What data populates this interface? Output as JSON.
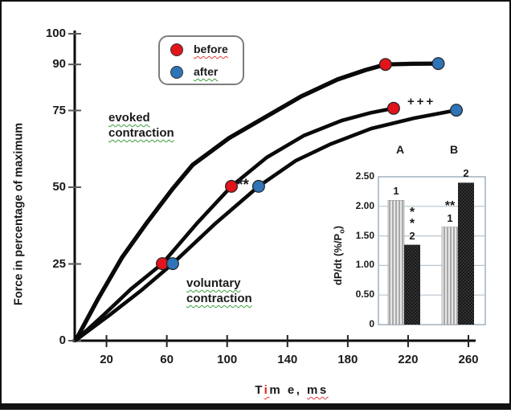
{
  "legend": {
    "items": [
      {
        "label": "before",
        "color": "#e1141c"
      },
      {
        "label": "after",
        "color": "#2e74b6"
      }
    ]
  },
  "annotations": {
    "evoked": [
      "evoked",
      "contraction"
    ],
    "voluntary": [
      "voluntary",
      "contraction"
    ],
    "double_star": "**",
    "triple_plus": "+++"
  },
  "chart_data": [
    {
      "type": "line",
      "xlabel": "Time, ms",
      "xlabel_parts": {
        "t": "T",
        "i": "i",
        "rest": "m e,",
        "unit": "ms"
      },
      "ylabel": "Force in percentage of maximum",
      "xlim": [
        0,
        275
      ],
      "ylim": [
        0,
        100
      ],
      "x_ticks": [
        20,
        60,
        100,
        140,
        180,
        220,
        260
      ],
      "y_ticks": [
        0,
        25,
        50,
        75,
        90,
        100
      ],
      "grid": false,
      "legend_position": "top-center",
      "line_color": "#0a0a0a",
      "series": [
        {
          "name": "evoked contraction - before",
          "marker_color": "#e1141c",
          "x": [
            0,
            14.4,
            30.4,
            46.9,
            63.9,
            77.2,
            101.2,
            125.2,
            149.2,
            173.2,
            191.8,
            205
          ],
          "y": [
            0.5,
            13.6,
            27.2,
            38.5,
            49.5,
            57.3,
            66,
            72.8,
            79.6,
            85.1,
            88.2,
            90
          ],
          "markers": [
            [
              205,
              90
            ]
          ]
        },
        {
          "name": "evoked contraction - after",
          "marker_color": "#2e74b6",
          "x": [
            0,
            14.4,
            30.4,
            46.9,
            63.9,
            77.2,
            101.2,
            125.2,
            149.2,
            173.2,
            191.8,
            205,
            222,
            240
          ],
          "y": [
            0.5,
            13.6,
            27.2,
            38.5,
            49.5,
            57.3,
            66,
            72.8,
            79.6,
            85.1,
            88.2,
            90,
            90.2,
            90.3
          ],
          "markers": [
            [
              240,
              90.3
            ]
          ]
        },
        {
          "name": "voluntary contraction - before",
          "marker_color": "#e1141c",
          "x": [
            0,
            18.6,
            36.2,
            57,
            79.9,
            102.8,
            126.3,
            150.8,
            175.8,
            195.5,
            210.4
          ],
          "y": [
            0.3,
            8.6,
            16.8,
            25.1,
            38.2,
            50.3,
            59.7,
            66.8,
            71.7,
            74.3,
            75.7
          ],
          "markers": [
            [
              57,
              25.1
            ],
            [
              102.8,
              50.3
            ],
            [
              210.4,
              75.7
            ]
          ]
        },
        {
          "name": "voluntary contraction - after",
          "marker_color": "#2e74b6",
          "x": [
            0,
            21.3,
            42.6,
            63.9,
            92.2,
            120.9,
            145.4,
            168.9,
            195.5,
            223.8,
            252
          ],
          "y": [
            0.3,
            8.1,
            16.2,
            25.1,
            38.2,
            50.3,
            58.6,
            64.1,
            69.1,
            72.5,
            75.1
          ],
          "markers": [
            [
              63.9,
              25.1
            ],
            [
              120.9,
              50.3
            ],
            [
              252,
              75.1
            ]
          ]
        }
      ],
      "annotations": [
        {
          "text": "**",
          "x": 107,
          "y": 52
        },
        {
          "text": "+++",
          "x": 221,
          "y": 79
        }
      ]
    },
    {
      "type": "bar",
      "ylabel": "dP/dt (%/Po)",
      "ylabel_parts": {
        "prefix": "dP/dt (%/P",
        "sub": "o",
        "suffix": ")"
      },
      "ylim": [
        0,
        2.5
      ],
      "y_ticks": [
        "2.50",
        "2.00",
        "1.50",
        "1.00",
        "0.50",
        "0"
      ],
      "grid": true,
      "groups": [
        {
          "label": "A",
          "bars": [
            {
              "label": "1",
              "value": 2.1,
              "pattern": "light-stripes",
              "annotation": ""
            },
            {
              "label": "2",
              "value": 1.35,
              "pattern": "dark-dots",
              "annotation": "*\n*"
            }
          ]
        },
        {
          "label": "B",
          "bars": [
            {
              "label": "1",
              "value": 1.65,
              "pattern": "light-stripes",
              "annotation": "**"
            },
            {
              "label": "2",
              "value": 2.4,
              "pattern": "dark-dots",
              "annotation": ""
            }
          ]
        }
      ]
    }
  ]
}
